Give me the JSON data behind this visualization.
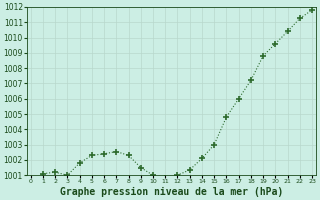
{
  "x": [
    0,
    1,
    2,
    3,
    4,
    5,
    6,
    7,
    8,
    9,
    10,
    11,
    12,
    13,
    14,
    15,
    16,
    17,
    18,
    19,
    20,
    21,
    22,
    23
  ],
  "y": [
    1000.6,
    1001.1,
    1001.2,
    1001.0,
    1001.8,
    1002.3,
    1002.4,
    1002.55,
    1002.3,
    1001.5,
    1001.0,
    1000.85,
    1001.0,
    1001.35,
    1002.1,
    1003.0,
    1004.8,
    1006.0,
    1007.2,
    1008.8,
    1009.6,
    1010.4,
    1011.25,
    1011.8
  ],
  "line_color": "#2d6a2d",
  "marker_color": "#2d6a2d",
  "bg_color": "#cceee4",
  "grid_color": "#b8d8cc",
  "label_color": "#1a4a1a",
  "xlabel": "Graphe pression niveau de la mer (hPa)",
  "ylim_min": 1001,
  "ylim_max": 1012,
  "ytick_step": 1,
  "xtick_labels": [
    "0",
    "1",
    "2",
    "3",
    "4",
    "5",
    "6",
    "7",
    "8",
    "9",
    "10",
    "11",
    "12",
    "13",
    "14",
    "15",
    "16",
    "17",
    "18",
    "19",
    "20",
    "21",
    "22",
    "23"
  ],
  "xlabel_fontsize": 7.0,
  "ytick_fontsize": 5.5,
  "xtick_fontsize": 4.5
}
